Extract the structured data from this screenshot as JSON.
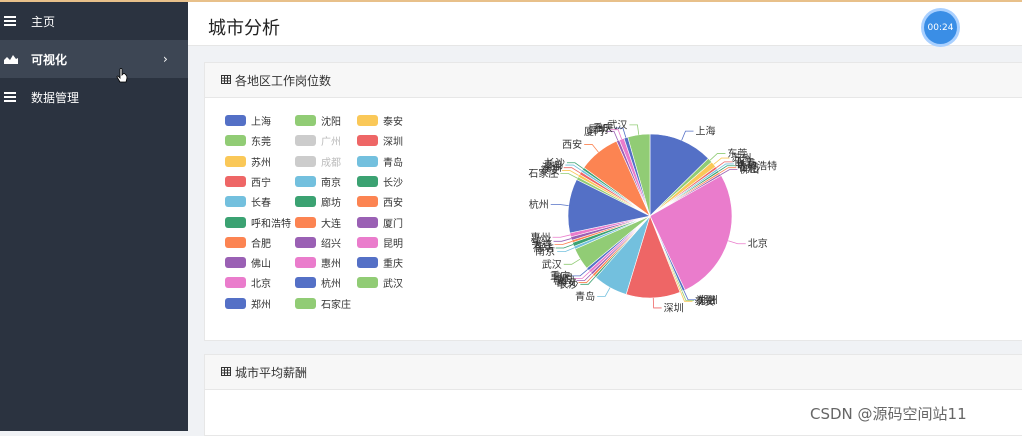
{
  "sidebar": {
    "items": [
      {
        "label": "主页",
        "icon": "menu-lines-icon"
      },
      {
        "label": "可视化",
        "icon": "area-chart-icon",
        "active": true,
        "chevron": "›"
      },
      {
        "label": "数据管理",
        "icon": "menu-lines-icon"
      }
    ]
  },
  "header": {
    "title": "城市分析",
    "timer": "00:24"
  },
  "panels": [
    {
      "title": "各地区工作岗位数"
    },
    {
      "title": "城市平均薪酬"
    }
  ],
  "watermark": "CSDN @源码空间站11",
  "chart_data": {
    "type": "pie",
    "legend_placement": "left",
    "slices": [
      {
        "name": "上海",
        "value": 13,
        "color": "#5470c6"
      },
      {
        "name": "东莞",
        "value": 1,
        "color": "#91cc75"
      },
      {
        "name": "苏州",
        "value": 1.2,
        "color": "#fac858"
      },
      {
        "name": "西宁",
        "value": 0.5,
        "color": "#ee6666"
      },
      {
        "name": "长春",
        "value": 0.4,
        "color": "#73c0de"
      },
      {
        "name": "呼和浩特",
        "value": 0.4,
        "color": "#3ba272"
      },
      {
        "name": "合肥",
        "value": 0.4,
        "color": "#fc8452"
      },
      {
        "name": "佛山",
        "value": 0.4,
        "color": "#9a60b4"
      },
      {
        "name": "北京",
        "value": 27,
        "color": "#ea7ccc"
      },
      {
        "name": "郑州",
        "value": 0.5,
        "color": "#5470c6"
      },
      {
        "name": "沈阳",
        "value": 0.3,
        "color": "#91cc75"
      },
      {
        "name": "泰安",
        "value": 0.3,
        "color": "#fac858"
      },
      {
        "name": "深圳",
        "value": 11,
        "color": "#ee6666"
      },
      {
        "name": "青岛",
        "value": 7,
        "color": "#73c0de"
      },
      {
        "name": "长沙",
        "value": 0.4,
        "color": "#3ba272"
      },
      {
        "name": "西安",
        "value": 0.5,
        "color": "#fc8452"
      },
      {
        "name": "厦门",
        "value": 0.5,
        "color": "#9a60b4"
      },
      {
        "name": "昆明",
        "value": 0.6,
        "color": "#ea7ccc"
      },
      {
        "name": "重庆",
        "value": 0.6,
        "color": "#5470c6"
      },
      {
        "name": "武汉",
        "value": 4.5,
        "color": "#91cc75"
      },
      {
        "name": "南京",
        "value": 0.6,
        "color": "#73c0de"
      },
      {
        "name": "廊坊",
        "value": 0.8,
        "color": "#3ba272"
      },
      {
        "name": "大连",
        "value": 0.5,
        "color": "#fc8452"
      },
      {
        "name": "绍兴",
        "value": 0.7,
        "color": "#9a60b4"
      },
      {
        "name": "惠州",
        "value": 0.8,
        "color": "#ea7ccc"
      },
      {
        "name": "杭州",
        "value": 11,
        "color": "#5470c6"
      },
      {
        "name": "石家庄",
        "value": 0.6,
        "color": "#91cc75"
      },
      {
        "name": "泰安",
        "value": 0.6,
        "color": "#fac858"
      },
      {
        "name": "深圳",
        "value": 0.6,
        "color": "#ee6666"
      },
      {
        "name": "青岛",
        "value": 0.5,
        "color": "#73c0de"
      },
      {
        "name": "长沙",
        "value": 0.5,
        "color": "#3ba272"
      },
      {
        "name": "西安",
        "value": 8.5,
        "color": "#fc8452"
      },
      {
        "name": "厦门",
        "value": 0.6,
        "color": "#9a60b4"
      },
      {
        "name": "昆明",
        "value": 1,
        "color": "#ea7ccc"
      },
      {
        "name": "重庆",
        "value": 0.8,
        "color": "#5470c6"
      },
      {
        "name": "武汉",
        "value": 4.5,
        "color": "#91cc75"
      }
    ],
    "legend": [
      {
        "name": "上海",
        "color": "#5470c6"
      },
      {
        "name": "沈阳",
        "color": "#91cc75"
      },
      {
        "name": "泰安",
        "color": "#fac858"
      },
      {
        "name": "东莞",
        "color": "#91cc75"
      },
      {
        "name": "广州",
        "color": "#cccccc",
        "disabled": true
      },
      {
        "name": "深圳",
        "color": "#ee6666"
      },
      {
        "name": "苏州",
        "color": "#fac858"
      },
      {
        "name": "成都",
        "color": "#cccccc",
        "disabled": true
      },
      {
        "name": "青岛",
        "color": "#73c0de"
      },
      {
        "name": "西宁",
        "color": "#ee6666"
      },
      {
        "name": "南京",
        "color": "#73c0de"
      },
      {
        "name": "长沙",
        "color": "#3ba272"
      },
      {
        "name": "长春",
        "color": "#73c0de"
      },
      {
        "name": "廊坊",
        "color": "#3ba272"
      },
      {
        "name": "西安",
        "color": "#fc8452"
      },
      {
        "name": "呼和浩特",
        "color": "#3ba272"
      },
      {
        "name": "大连",
        "color": "#fc8452"
      },
      {
        "name": "厦门",
        "color": "#9a60b4"
      },
      {
        "name": "合肥",
        "color": "#fc8452"
      },
      {
        "name": "绍兴",
        "color": "#9a60b4"
      },
      {
        "name": "昆明",
        "color": "#ea7ccc"
      },
      {
        "name": "佛山",
        "color": "#9a60b4"
      },
      {
        "name": "惠州",
        "color": "#ea7ccc"
      },
      {
        "name": "重庆",
        "color": "#5470c6"
      },
      {
        "name": "北京",
        "color": "#ea7ccc"
      },
      {
        "name": "杭州",
        "color": "#5470c6"
      },
      {
        "name": "武汉",
        "color": "#91cc75"
      },
      {
        "name": "郑州",
        "color": "#5470c6"
      },
      {
        "name": "石家庄",
        "color": "#91cc75"
      }
    ]
  }
}
